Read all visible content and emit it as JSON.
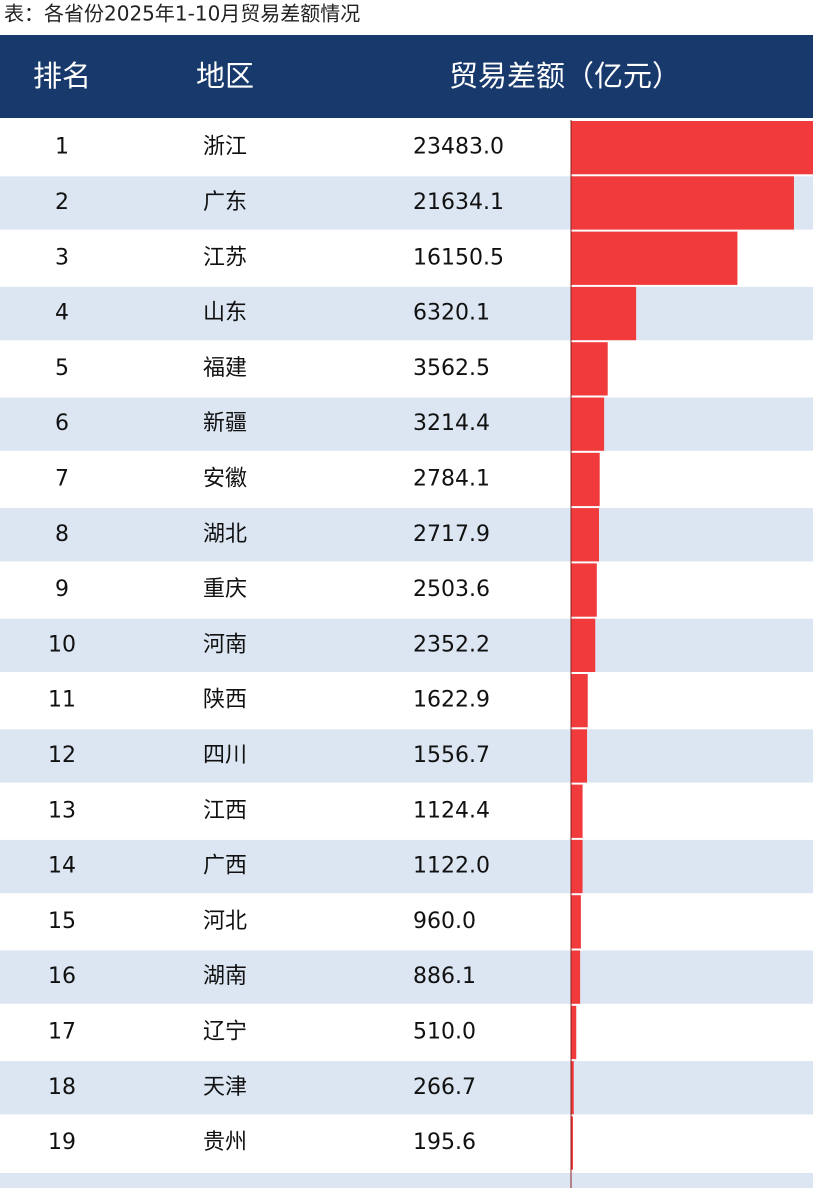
{
  "title": "表：各省份2025年1-10月贸易差额情况",
  "header": {
    "rank": "排名",
    "region": "地区",
    "value": "贸易差额（亿元）"
  },
  "rows": [
    {
      "rank": "1",
      "region": "浙江",
      "value": "23483.0"
    },
    {
      "rank": "2",
      "region": "广东",
      "value": "21634.1"
    },
    {
      "rank": "3",
      "region": "江苏",
      "value": "16150.5"
    },
    {
      "rank": "4",
      "region": "山东",
      "value": "6320.1"
    },
    {
      "rank": "5",
      "region": "福建",
      "value": "3562.5"
    },
    {
      "rank": "6",
      "region": "新疆",
      "value": "3214.4"
    },
    {
      "rank": "7",
      "region": "安徽",
      "value": "2784.1"
    },
    {
      "rank": "8",
      "region": "湖北",
      "value": "2717.9"
    },
    {
      "rank": "9",
      "region": "重庆",
      "value": "2503.6"
    },
    {
      "rank": "10",
      "region": "河南",
      "value": "2352.2"
    },
    {
      "rank": "11",
      "region": "陕西",
      "value": "1622.9"
    },
    {
      "rank": "12",
      "region": "四川",
      "value": "1556.7"
    },
    {
      "rank": "13",
      "region": "江西",
      "value": "1124.4"
    },
    {
      "rank": "14",
      "region": "广西",
      "value": "1122.0"
    },
    {
      "rank": "15",
      "region": "河北",
      "value": "960.0"
    },
    {
      "rank": "16",
      "region": "湖南",
      "value": "886.1"
    },
    {
      "rank": "17",
      "region": "辽宁",
      "value": "510.0"
    },
    {
      "rank": "18",
      "region": "天津",
      "value": "266.7"
    },
    {
      "rank": "19",
      "region": "贵州",
      "value": "195.6"
    }
  ]
}
